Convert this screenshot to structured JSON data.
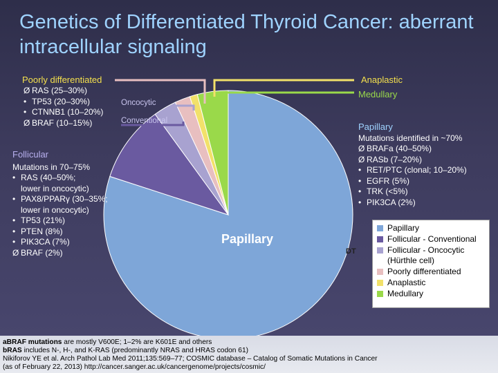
{
  "title": "Genetics of Differentiated Thyroid Cancer: aberrant intracellular signaling",
  "poorly": {
    "heading": "Poorly differentiated",
    "items": [
      "RAS (25–30%)",
      "TP53 (20–30%)",
      "CTNNB1 (10–20%)",
      "BRAF (10–15%)"
    ],
    "markers": [
      "Ø",
      "•",
      "•",
      "Ø"
    ]
  },
  "anaplastic_label": "Anaplastic",
  "medullary_label": "Medullary",
  "oncocytic_label": "Oncocytic",
  "conventional_label": "Conventional",
  "follicular": {
    "heading": "Follicular",
    "subheading": "Mutations in 70–75%",
    "items": [
      {
        "marker": "•",
        "text": "RAS (40–50%;"
      },
      {
        "marker": "",
        "text": "lower in oncocytic)"
      },
      {
        "marker": "•",
        "text": "PAX8/PPARγ (30–35%;"
      },
      {
        "marker": "",
        "text": "lower in oncocytic)"
      },
      {
        "marker": "•",
        "text": "TP53 (21%)"
      },
      {
        "marker": "•",
        "text": "PTEN (8%)"
      },
      {
        "marker": "•",
        "text": "PIK3CA (7%)"
      },
      {
        "marker": "Ø",
        "text": "BRAF (2%)"
      }
    ]
  },
  "papillary": {
    "heading": "Papillary",
    "subheading": "Mutations identified in ~70%",
    "items": [
      {
        "marker": "Ø",
        "text": "BRAFa (40–50%)"
      },
      {
        "marker": "Ø",
        "text": "RASb (7–20%)"
      },
      {
        "marker": "•",
        "text": "RET/PTC (clonal; 10–20%)"
      },
      {
        "marker": "•",
        "text": "EGFR (5%)"
      },
      {
        "marker": "•",
        "text": "TRK (<5%)"
      },
      {
        "marker": "•",
        "text": "PIK3CA (2%)"
      }
    ]
  },
  "pie_label": "Papillary",
  "dt_label": "DT",
  "footer": {
    "line1_bold": "aBRAF mutations",
    "line1_rest": " are mostly V600E; 1–2% are K601E and others",
    "line2_bold": "bRAS",
    "line2_rest": " includes N-, H-, and K-RAS (predominantly NRAS and HRAS codon 61)",
    "line3": "Nikiforov YE et al. Arch Pathol Lab Med 2011;135:569–77; COSMIC database – Catalog of Somatic Mutations in Cancer",
    "line4": "(as of February 22, 2013) http://cancer.sanger.ac.uk/cancergenome/projects/cosmic/"
  },
  "chart_data": {
    "type": "pie",
    "categories": [
      "Papillary",
      "Follicular - Conventional",
      "Follicular - Oncocytic (Hürthle cell)",
      "Poorly differentiated",
      "Anaplastic",
      "Medullary"
    ],
    "values": [
      80,
      10,
      3,
      2,
      1,
      4
    ],
    "colors": [
      "#7ea6d8",
      "#6a5aa0",
      "#a8a2d0",
      "#e8bfc0",
      "#f2e16a",
      "#9ad94a"
    ],
    "legend": [
      "Papillary",
      "Follicular - Conventional",
      "Follicular - Oncocytic (Hürthle cell)",
      "Poorly differentiated",
      "Anaplastic",
      "Medullary"
    ],
    "legend_position": "right",
    "title": ""
  }
}
